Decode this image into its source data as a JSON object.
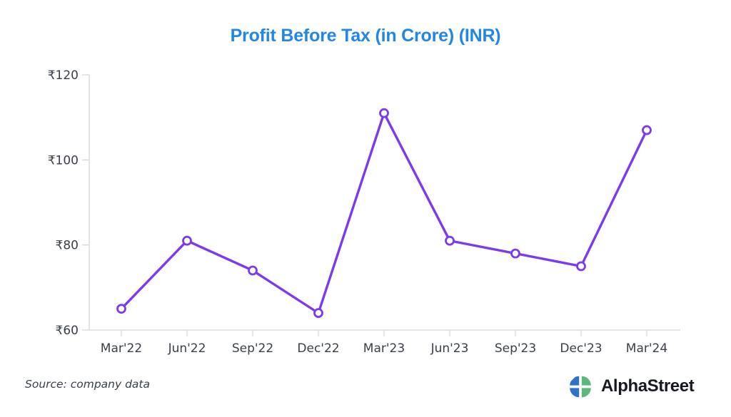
{
  "source_note": "Source: company data",
  "branding": {
    "name": "AlphaStreet"
  },
  "colors": {
    "title_blue": "#2287e4",
    "line": "#7c3aed",
    "marker_fill": "#ffffff",
    "axis": "#d8dde2",
    "tick_text": "#3a4048",
    "brand_text": "#161a20",
    "logo_blue": "#2d73cb",
    "logo_green": "#5cb87c"
  },
  "chart_data": {
    "type": "line",
    "title": "Profit Before Tax (in Crore) (INR)",
    "series_name": "Profit Before Tax",
    "categories": [
      "Mar'22",
      "Jun'22",
      "Sep'22",
      "Dec'22",
      "Mar'23",
      "Jun'23",
      "Sep'23",
      "Dec'23",
      "Mar'24"
    ],
    "values": [
      65,
      81,
      74,
      64,
      111,
      81,
      78,
      75,
      107
    ],
    "xlabel": "",
    "ylabel": "",
    "ylim": [
      60,
      120
    ],
    "yticks": [
      60,
      80,
      100,
      120
    ],
    "ytick_prefix": "₹",
    "grid": false,
    "legend": false,
    "marker": "circle"
  }
}
